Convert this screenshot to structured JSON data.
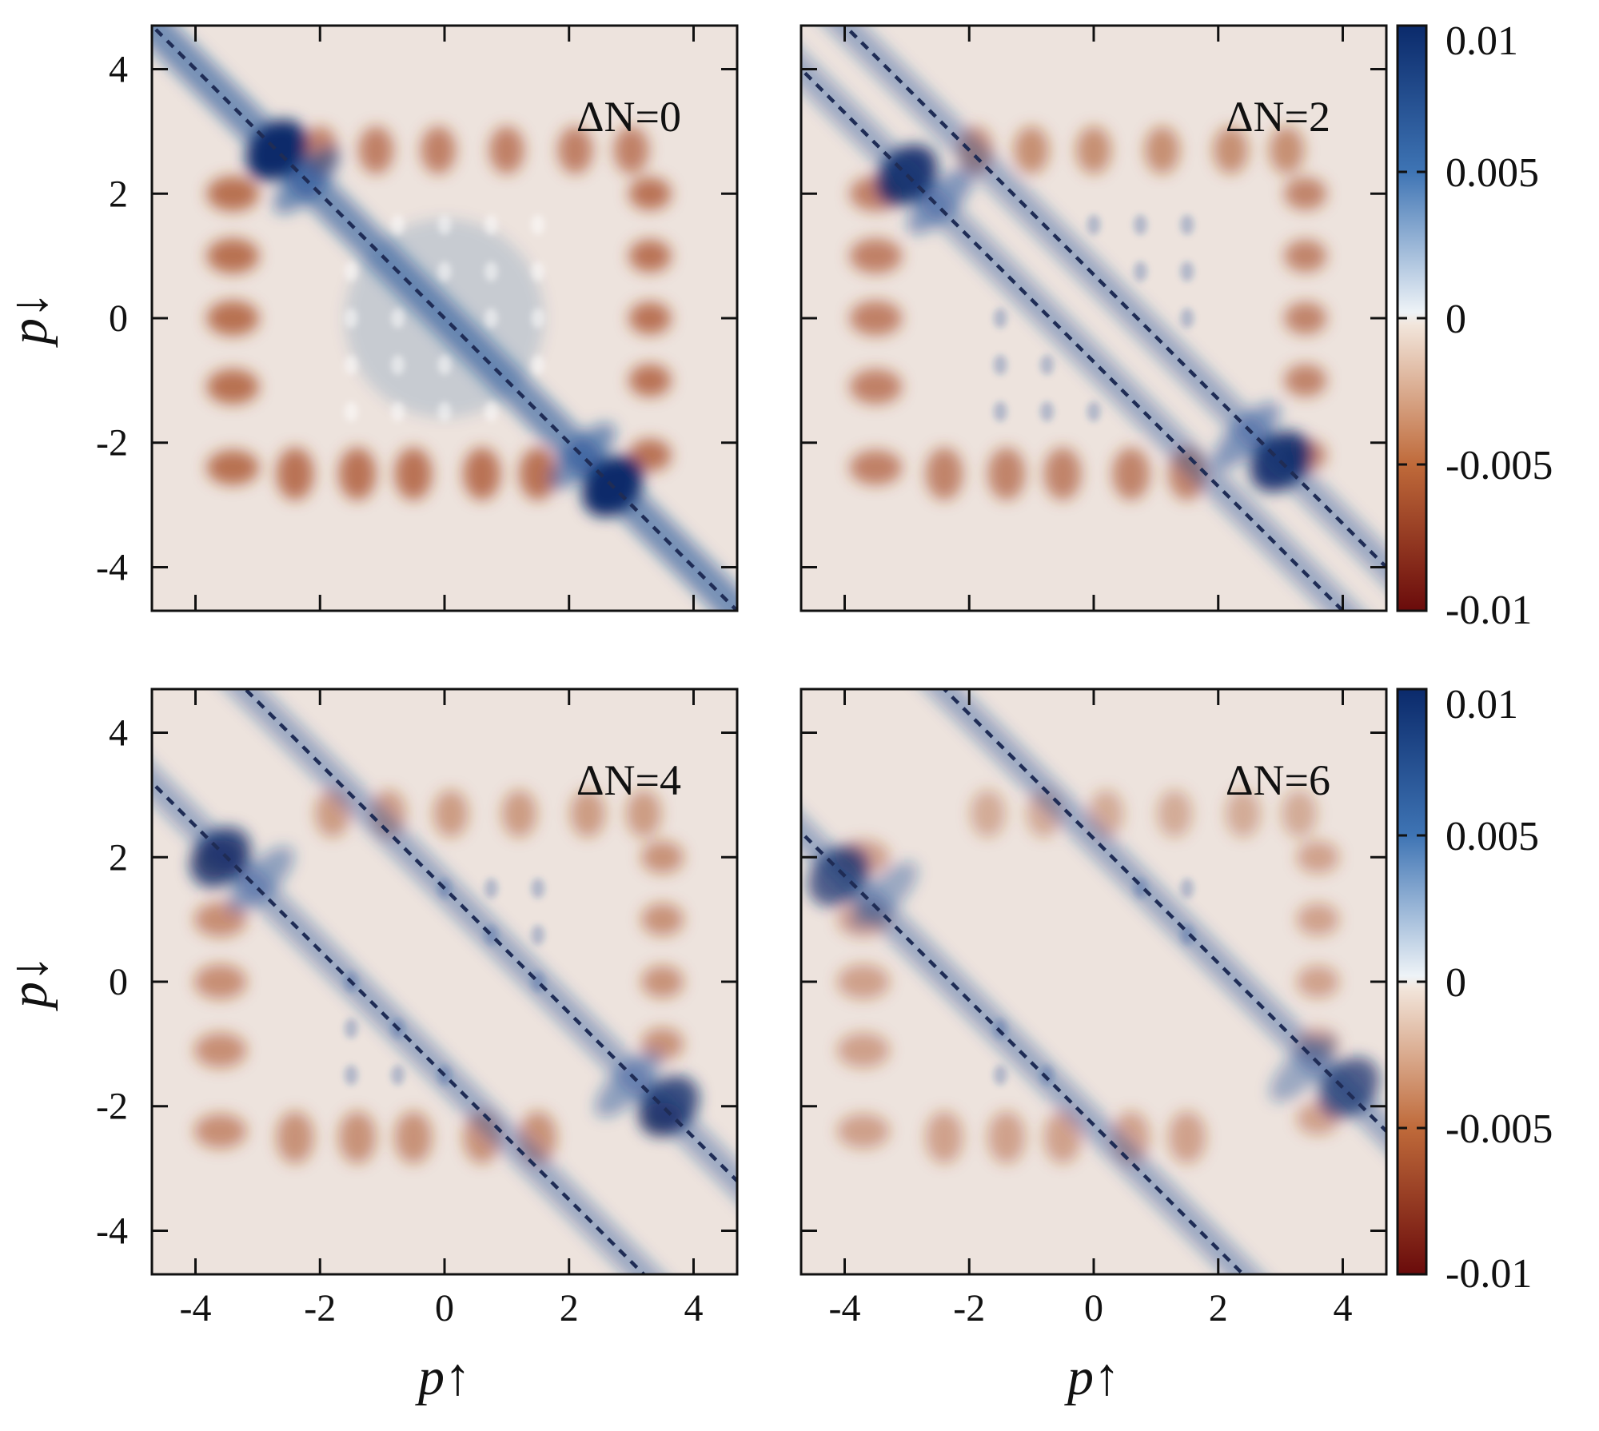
{
  "chart_data": [
    {
      "type": "heatmap",
      "panel_label": "ΔN=0",
      "delta_n": 0,
      "xlabel": "p↑",
      "ylabel": "p↓",
      "xlim": [
        -4.7,
        4.7
      ],
      "ylim": [
        -4.7,
        4.7
      ],
      "x_ticks": [
        "-4",
        "-2",
        "0",
        "2",
        "4"
      ],
      "y_ticks": [
        "4",
        "2",
        "0",
        "-2",
        "-4"
      ],
      "dashed_lines": [
        {
          "slope": -1,
          "intercept": 0
        }
      ],
      "peaks": [
        {
          "p_up": -2.7,
          "p_down": 2.7,
          "value": 0.01
        },
        {
          "p_up": 2.7,
          "p_down": -2.7,
          "value": 0.01
        }
      ]
    },
    {
      "type": "heatmap",
      "panel_label": "ΔN=2",
      "delta_n": 2,
      "xlabel": "p↑",
      "ylabel": "p↓",
      "xlim": [
        -4.7,
        4.7
      ],
      "ylim": [
        -4.7,
        4.7
      ],
      "x_ticks": [
        "-4",
        "-2",
        "0",
        "2",
        "4"
      ],
      "y_ticks": [
        "4",
        "2",
        "0",
        "-2",
        "-4"
      ],
      "dashed_lines": [
        {
          "slope": -1,
          "intercept": 0.7
        },
        {
          "slope": -1,
          "intercept": -0.7
        }
      ],
      "peaks": [
        {
          "p_up": -3.0,
          "p_down": 2.3,
          "value": 0.009
        },
        {
          "p_up": 3.0,
          "p_down": -2.3,
          "value": 0.009
        }
      ]
    },
    {
      "type": "heatmap",
      "panel_label": "ΔN=4",
      "delta_n": 4,
      "xlabel": "p↑",
      "ylabel": "p↓",
      "xlim": [
        -4.7,
        4.7
      ],
      "ylim": [
        -4.7,
        4.7
      ],
      "x_ticks": [
        "-4",
        "-2",
        "0",
        "2",
        "4"
      ],
      "y_ticks": [
        "4",
        "2",
        "0",
        "-2",
        "-4"
      ],
      "dashed_lines": [
        {
          "slope": -1,
          "intercept": 1.5
        },
        {
          "slope": -1,
          "intercept": -1.5
        }
      ],
      "peaks": [
        {
          "p_up": -3.6,
          "p_down": 2.0,
          "value": 0.008
        },
        {
          "p_up": 3.6,
          "p_down": -2.0,
          "value": 0.008
        }
      ]
    },
    {
      "type": "heatmap",
      "panel_label": "ΔN=6",
      "delta_n": 6,
      "xlabel": "p↑",
      "ylabel": "p↓",
      "xlim": [
        -4.7,
        4.7
      ],
      "ylim": [
        -4.7,
        4.7
      ],
      "x_ticks": [
        "-4",
        "-2",
        "0",
        "2",
        "4"
      ],
      "y_ticks": [
        "4",
        "2",
        "0",
        "-2",
        "-4"
      ],
      "dashed_lines": [
        {
          "slope": -1,
          "intercept": 2.3
        },
        {
          "slope": -1,
          "intercept": -2.3
        }
      ],
      "peaks": [
        {
          "p_up": -4.1,
          "p_down": 1.7,
          "value": 0.007
        },
        {
          "p_up": 4.1,
          "p_down": -1.7,
          "value": 0.007
        }
      ]
    }
  ],
  "colorbar": {
    "range": [
      -0.01,
      0.01
    ],
    "tick_labels": [
      "0.01",
      "0.005",
      "0",
      "-0.005",
      "-0.01"
    ],
    "colors": [
      "#0b2a6b",
      "#3e74b4",
      "#eef3f7",
      "#f2e6dc",
      "#bf6a3a",
      "#6a0b0b"
    ]
  },
  "styles": {
    "background_color": "#ede3dd",
    "dashed_line_color": "#1f2c55",
    "positive_color": "#1a4a96",
    "negative_color": "#a4441b"
  }
}
